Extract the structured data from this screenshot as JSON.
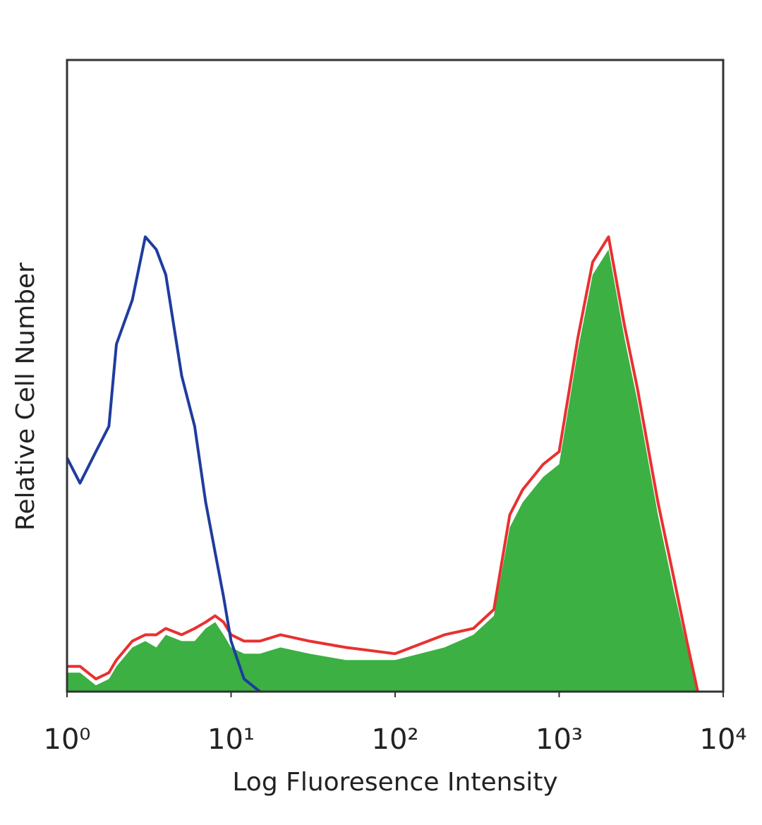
{
  "chart_data": {
    "type": "histogram",
    "x_label": "Log Fluoresence Intensity",
    "y_label": "Relative Cell Number",
    "xscale": "log",
    "xlim": [
      1,
      10000
    ],
    "ylim": [
      0,
      100
    ],
    "xticks": [
      {
        "value": 1,
        "label": "10⁰"
      },
      {
        "value": 10,
        "label": "10¹"
      },
      {
        "value": 100,
        "label": "10²"
      },
      {
        "value": 1000,
        "label": "10³"
      },
      {
        "value": 10000,
        "label": "10⁴"
      }
    ],
    "x": [
      1,
      1.2,
      1.5,
      1.8,
      2,
      2.5,
      3,
      3.5,
      4,
      5,
      6,
      7,
      8,
      9,
      10,
      12,
      15,
      20,
      30,
      50,
      100,
      200,
      300,
      400,
      500,
      600,
      800,
      1000,
      1300,
      1600,
      2000,
      2500,
      3000,
      4000,
      5000,
      6000,
      7000
    ],
    "series": [
      {
        "color": "#3cb043",
        "style": "fill",
        "values": [
          3,
          3,
          1,
          2,
          4,
          7,
          8,
          7,
          9,
          8,
          8,
          10,
          11,
          9,
          7,
          6,
          6,
          7,
          6,
          5,
          5,
          7,
          9,
          12,
          26,
          30,
          34,
          36,
          54,
          66,
          70,
          56,
          46,
          28,
          16,
          7,
          0
        ]
      },
      {
        "color": "#e8312f",
        "style": "line",
        "values": [
          4,
          4,
          2,
          3,
          5,
          8,
          9,
          9,
          10,
          9,
          10,
          11,
          12,
          11,
          9,
          8,
          8,
          9,
          8,
          7,
          6,
          9,
          10,
          13,
          28,
          32,
          36,
          38,
          56,
          68,
          72,
          58,
          48,
          30,
          18,
          8,
          0
        ]
      },
      {
        "color": "#1f3c9e",
        "style": "line",
        "values": [
          37,
          33,
          38,
          42,
          55,
          62,
          72,
          70,
          66,
          50,
          42,
          30,
          22,
          15,
          8,
          2,
          0,
          null,
          null,
          null,
          null,
          null,
          null,
          null,
          null,
          null,
          null,
          null,
          null,
          null,
          null,
          null,
          null,
          null,
          null,
          null,
          null
        ]
      }
    ]
  }
}
